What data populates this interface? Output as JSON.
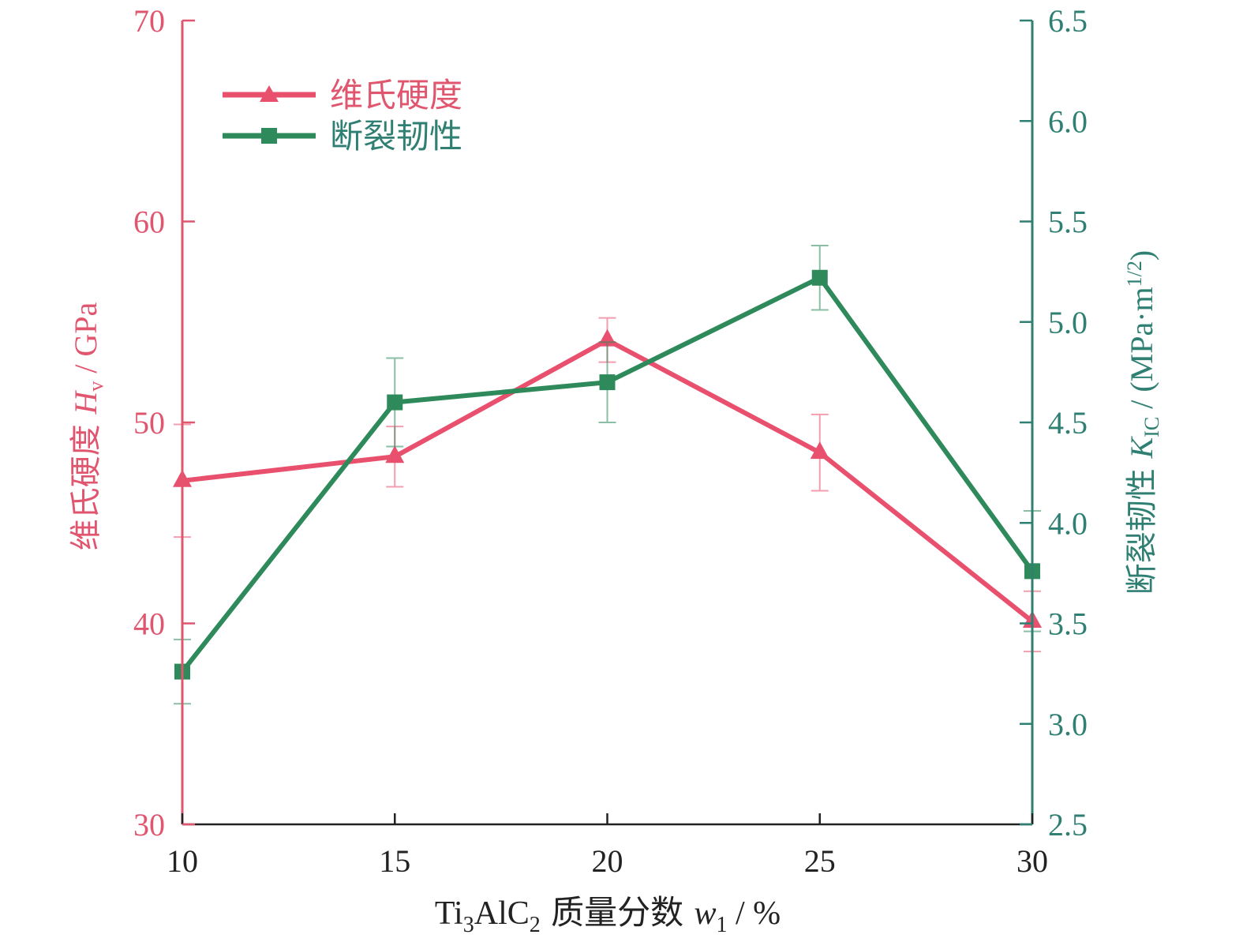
{
  "chart_data": {
    "type": "line",
    "x": [
      10,
      15,
      20,
      25,
      30
    ],
    "x_ticks": [
      "10",
      "15",
      "20",
      "25",
      "30"
    ],
    "xlim": [
      10,
      30
    ],
    "xlabel": {
      "p1": "Ti",
      "p1_sub": "3",
      "p2": "AlC",
      "p2_sub": "2",
      "p3": " 质量分数 ",
      "p3_var": "w",
      "p3_sub": "1",
      "p4": " / %"
    },
    "y_left": {
      "lim": [
        30,
        70
      ],
      "ticks": [
        30,
        40,
        50,
        60,
        70
      ],
      "tick_labels": [
        "30",
        "40",
        "50",
        "60",
        "70"
      ],
      "label": {
        "p1": "维氏硬度 ",
        "p1_var": "H",
        "p1_sub": "v",
        "p2": " / GPa"
      },
      "color": "#e0566f"
    },
    "y_right": {
      "lim": [
        2.5,
        6.5
      ],
      "ticks": [
        2.5,
        3.0,
        3.5,
        4.0,
        4.5,
        5.0,
        5.5,
        6.0,
        6.5
      ],
      "tick_labels": [
        "2.5",
        "3.0",
        "3.5",
        "4.0",
        "4.5",
        "5.0",
        "5.5",
        "6.0",
        "6.5"
      ],
      "label": {
        "p1": "断裂韧性 ",
        "p1_var": "K",
        "p1_sub": "IC",
        "p2": " / (MPa·m",
        "p2_sup": "1/2",
        "p3": ")"
      },
      "color": "#2f7f73"
    },
    "series": [
      {
        "name": "维氏硬度",
        "axis": "left",
        "marker": "triangle",
        "color": "#e8506e",
        "values": [
          47.1,
          48.3,
          54.1,
          48.5,
          40.1
        ],
        "errors": [
          2.8,
          1.5,
          1.1,
          1.9,
          1.5
        ]
      },
      {
        "name": "断裂韧性",
        "axis": "right",
        "marker": "square",
        "color": "#2e8a5a",
        "values": [
          3.26,
          4.6,
          4.7,
          5.22,
          3.76
        ],
        "errors": [
          0.16,
          0.22,
          0.2,
          0.16,
          0.3
        ]
      }
    ],
    "legend": {
      "position": "top-left"
    },
    "grid": false
  }
}
